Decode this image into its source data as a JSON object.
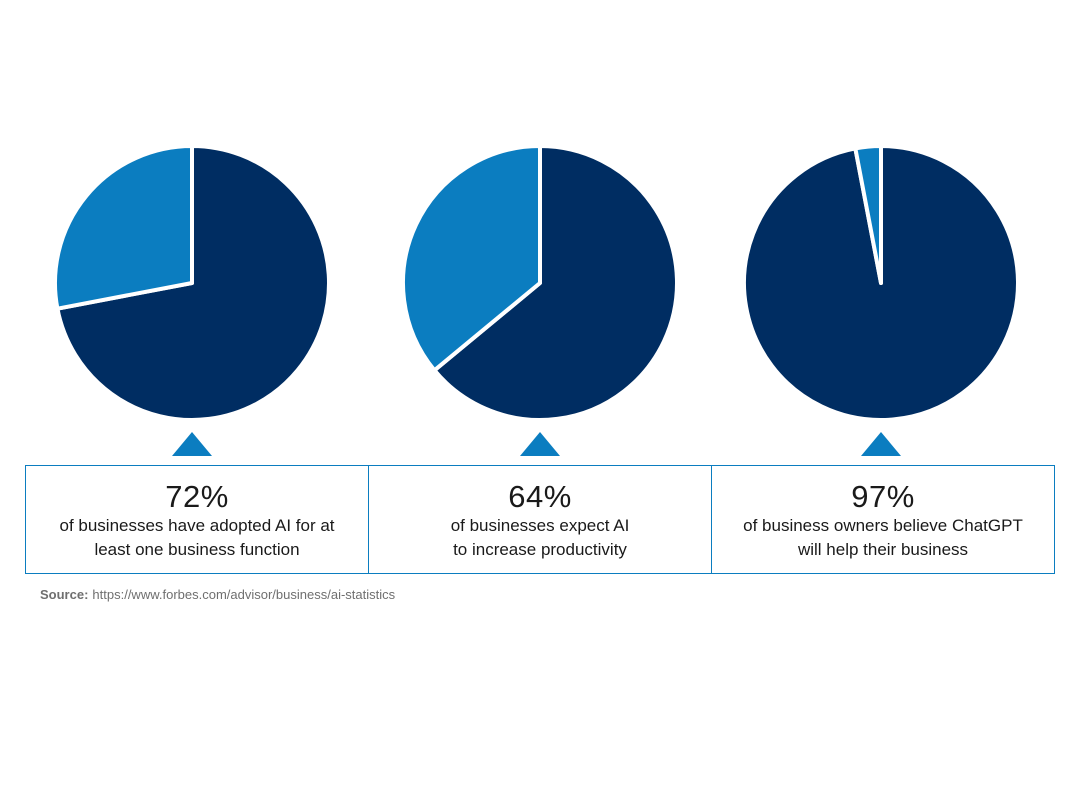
{
  "chart_data": {
    "type": "pie",
    "charts": [
      {
        "slices": [
          {
            "label": "",
            "value": 72,
            "color": "#002d62"
          },
          {
            "label": "",
            "value": 28,
            "color": "#0b7dc0"
          }
        ],
        "stat_value": "72%",
        "description_lines": [
          "of businesses have adopted AI for at",
          "least one business function"
        ]
      },
      {
        "slices": [
          {
            "label": "",
            "value": 64,
            "color": "#002d62"
          },
          {
            "label": "",
            "value": 36,
            "color": "#0b7dc0"
          }
        ],
        "stat_value": "64%",
        "description_lines": [
          "of businesses expect AI",
          "to increase productivity"
        ]
      },
      {
        "slices": [
          {
            "label": "",
            "value": 97,
            "color": "#002d62"
          },
          {
            "label": "",
            "value": 3,
            "color": "#0b7dc0"
          }
        ],
        "stat_value": "97%",
        "description_lines": [
          "of business owners believe ChatGPT",
          "will help their business"
        ]
      }
    ]
  },
  "colors": {
    "primary": "#002d62",
    "accent": "#0b7dc0"
  },
  "source": {
    "label": "Source:",
    "url": "https://www.forbes.com/advisor/business/ai-statistics"
  }
}
